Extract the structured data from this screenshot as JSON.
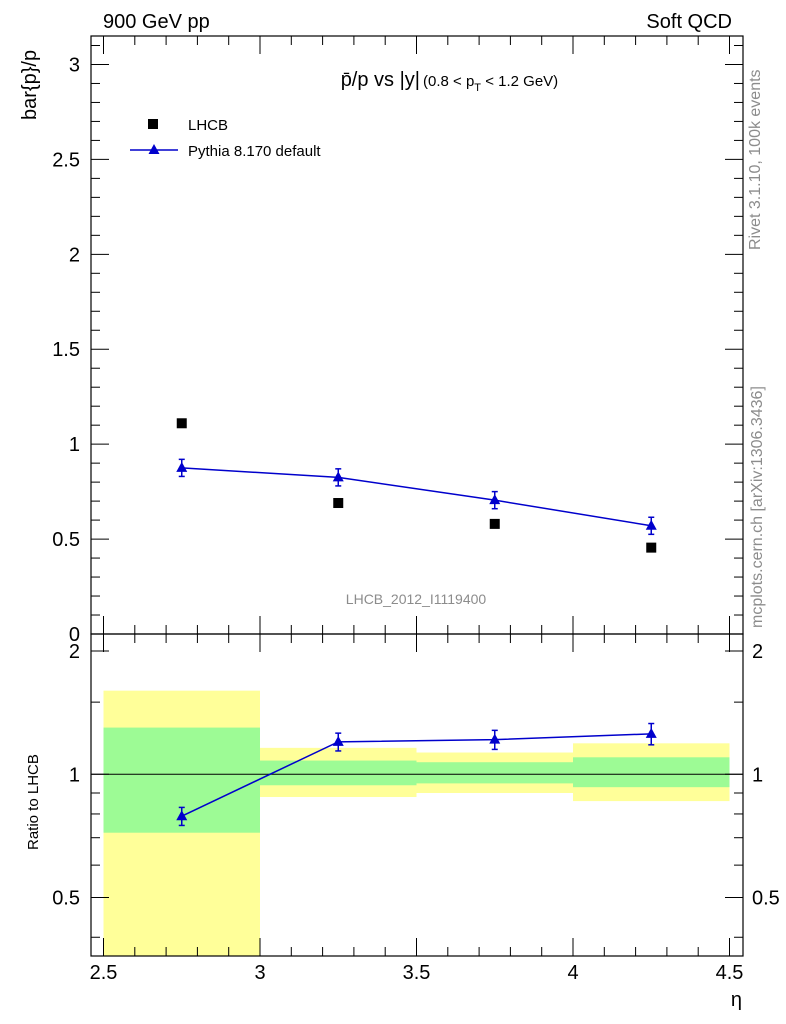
{
  "header": {
    "left": "900 GeV pp",
    "right": "Soft QCD"
  },
  "side_labels": {
    "rivet": "Rivet 3.1.10,  100k events",
    "mcplots": "mcplots.cern.ch [arXiv:1306.3436]"
  },
  "colors": {
    "mc": "#0000cc",
    "data": "#000000",
    "band_inner": "#9dfb95",
    "band_outer": "#ffff99"
  },
  "chart_data": [
    {
      "type": "scatter",
      "panel": "main",
      "title_parts": {
        "obs": "p̄/p vs |y|",
        "cut_open": "(0.8 < p",
        "cut_sub": "T",
        "cut_close": " < 1.2 GeV)"
      },
      "ylabel": "bar{p}/p",
      "xlim": [
        2.5,
        4.5
      ],
      "ylim": [
        0,
        3.15
      ],
      "yticks": [
        {
          "v": 0,
          "label": "0"
        },
        {
          "v": 0.5,
          "label": "0.5"
        },
        {
          "v": 1,
          "label": "1"
        },
        {
          "v": 1.5,
          "label": "1.5"
        },
        {
          "v": 2,
          "label": "2"
        },
        {
          "v": 2.5,
          "label": "2.5"
        },
        {
          "v": 3,
          "label": "3"
        }
      ],
      "watermark": "LHCB_2012_I1119400",
      "legend": {
        "placement": "top-left",
        "data_label": "LHCB",
        "mc_label": "Pythia 8.170 default"
      },
      "series": [
        {
          "name": "LHCB",
          "x": [
            2.75,
            3.25,
            3.75,
            4.25
          ],
          "y": [
            1.11,
            0.69,
            0.58,
            0.455
          ],
          "yerr": [
            0,
            0,
            0,
            0
          ]
        },
        {
          "name": "Pythia 8.170 default",
          "x": [
            2.75,
            3.25,
            3.75,
            4.25
          ],
          "y": [
            0.875,
            0.825,
            0.705,
            0.57
          ],
          "yerr": [
            0.045,
            0.045,
            0.045,
            0.045
          ]
        }
      ]
    },
    {
      "type": "line",
      "panel": "ratio",
      "ylabel": "Ratio to LHCB",
      "xlabel": "η",
      "xlim": [
        2.5,
        4.5
      ],
      "ylim": [
        0.36,
        2.2
      ],
      "yscale": "log",
      "yticks_left": [
        {
          "v": 0.5,
          "label": "0.5"
        },
        {
          "v": 1,
          "label": "1"
        },
        {
          "v": 2,
          "label": "2"
        }
      ],
      "yticks_right": [
        {
          "v": 0.5,
          "label": "0.5"
        },
        {
          "v": 1,
          "label": "1"
        },
        {
          "v": 2,
          "label": "2"
        }
      ],
      "xticks": [
        {
          "v": 2.5,
          "label": "2.5"
        },
        {
          "v": 3,
          "label": "3"
        },
        {
          "v": 3.5,
          "label": "3.5"
        },
        {
          "v": 4,
          "label": "4"
        },
        {
          "v": 4.5,
          "label": "4.5"
        }
      ],
      "bands": [
        {
          "x0": 2.5,
          "x1": 3.0,
          "outer": [
            0.36,
            1.6
          ],
          "inner": [
            0.72,
            1.3
          ]
        },
        {
          "x0": 3.0,
          "x1": 3.5,
          "outer": [
            0.88,
            1.16
          ],
          "inner": [
            0.94,
            1.08
          ]
        },
        {
          "x0": 3.5,
          "x1": 4.0,
          "outer": [
            0.9,
            1.13
          ],
          "inner": [
            0.95,
            1.07
          ]
        },
        {
          "x0": 4.0,
          "x1": 4.5,
          "outer": [
            0.86,
            1.19
          ],
          "inner": [
            0.93,
            1.1
          ]
        }
      ],
      "series": [
        {
          "name": "Pythia 8.170 default",
          "x": [
            2.75,
            3.25,
            3.75,
            4.25
          ],
          "y": [
            0.79,
            1.2,
            1.215,
            1.255
          ],
          "yerr": [
            0.04,
            0.06,
            0.065,
            0.075
          ]
        }
      ]
    }
  ]
}
